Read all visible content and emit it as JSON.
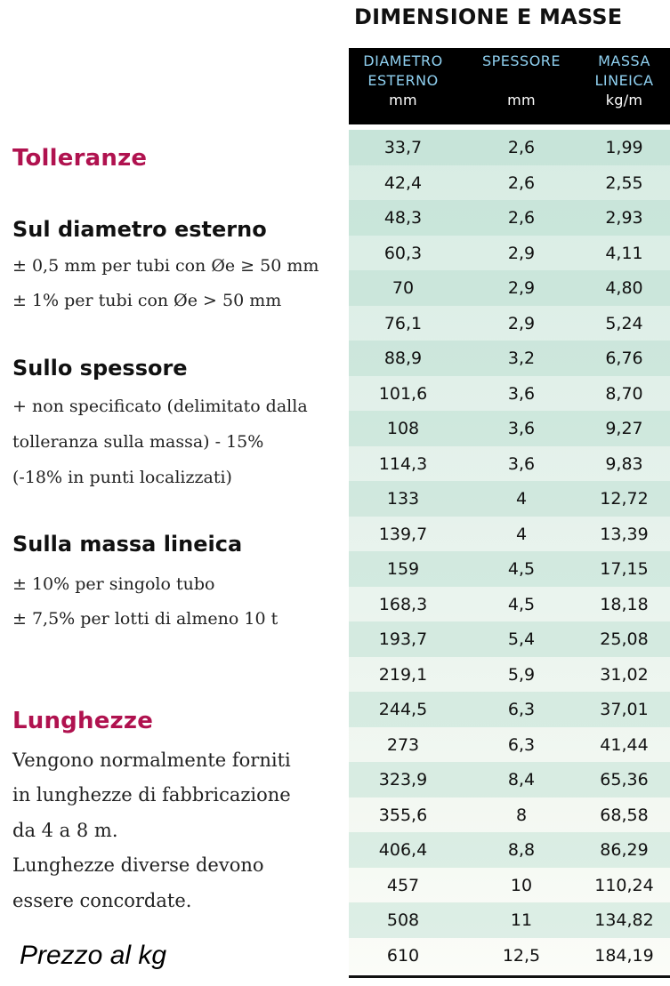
{
  "tolerances": {
    "title": "Tolleranze",
    "diameter": {
      "title": "Sul diametro esterno",
      "lines": [
        "± 0,5 mm per tubi con Øe ≥ 50 mm",
        "± 1% per tubi con Øe > 50 mm"
      ]
    },
    "thickness": {
      "title": "Sullo spessore",
      "lines": [
        "+ non specificato (delimitato dalla",
        "tolleranza sulla massa) - 15%",
        "(-18% in punti localizzati)"
      ]
    },
    "mass": {
      "title": "Sulla massa lineica",
      "lines": [
        "± 10%  per singolo tubo",
        "± 7,5%  per lotti di almeno 10 t"
      ]
    }
  },
  "lengths": {
    "title": "Lunghezze",
    "lines": [
      "Vengono normalmente forniti",
      "in lunghezze di fabbricazione",
      "da 4 a 8 m.",
      "Lunghezze diverse devono",
      "essere concordate."
    ]
  },
  "price_note": "Prezzo al kg",
  "table": {
    "title": "DIMENSIONE E MASSE",
    "headers": [
      {
        "lines": [
          "DIAMETRO",
          "ESTERNO"
        ],
        "unit": "mm"
      },
      {
        "lines": [
          "SPESSORE"
        ],
        "unit": "mm"
      },
      {
        "lines": [
          "MASSA",
          "LINEICA"
        ],
        "unit": "kg/m"
      }
    ],
    "rows": [
      [
        "33,7",
        "2,6",
        "1,99"
      ],
      [
        "42,4",
        "2,6",
        "2,55"
      ],
      [
        "48,3",
        "2,6",
        "2,93"
      ],
      [
        "60,3",
        "2,9",
        "4,11"
      ],
      [
        "70",
        "2,9",
        "4,80"
      ],
      [
        "76,1",
        "2,9",
        "5,24"
      ],
      [
        "88,9",
        "3,2",
        "6,76"
      ],
      [
        "101,6",
        "3,6",
        "8,70"
      ],
      [
        "108",
        "3,6",
        "9,27"
      ],
      [
        "114,3",
        "3,6",
        "9,83"
      ],
      [
        "133",
        "4",
        "12,72"
      ],
      [
        "139,7",
        "4",
        "13,39"
      ],
      [
        "159",
        "4,5",
        "17,15"
      ],
      [
        "168,3",
        "4,5",
        "18,18"
      ],
      [
        "193,7",
        "5,4",
        "25,08"
      ],
      [
        "219,1",
        "5,9",
        "31,02"
      ],
      [
        "244,5",
        "6,3",
        "37,01"
      ],
      [
        "273",
        "6,3",
        "41,44"
      ],
      [
        "323,9",
        "8,4",
        "65,36"
      ],
      [
        "355,6",
        "8",
        "68,58"
      ],
      [
        "406,4",
        "8,8",
        "86,29"
      ],
      [
        "457",
        "10",
        "110,24"
      ],
      [
        "508",
        "11",
        "134,82"
      ],
      [
        "610",
        "12,5",
        "184,19"
      ]
    ]
  },
  "colors": {
    "heading_accent": "#b0124f",
    "header_text": "#8fd0f0",
    "table_tint": "#d7ece3"
  }
}
